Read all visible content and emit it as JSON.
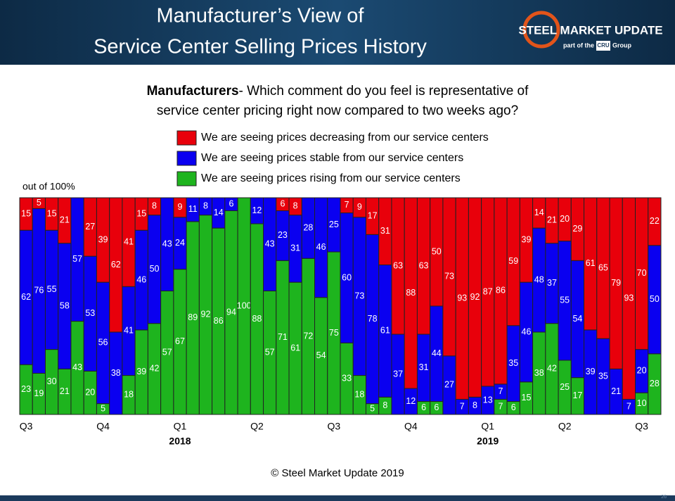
{
  "header": {
    "title": [
      "Manufacturer’s View of",
      "Service Center Selling Prices History"
    ],
    "logo": "STEEL MARKET UPDATE",
    "logo_tagline": [
      "part of the",
      "CRU",
      "Group"
    ]
  },
  "chart_data": {
    "type": "bar",
    "stacked": true,
    "subtitle_bold": "Manufacturers",
    "subtitle": [
      "- Which comment do you feel is representative of",
      "service center pricing right now compared to two weeks ago?"
    ],
    "ylabel": "out of 100%",
    "ylim": [
      0,
      100
    ],
    "categories": [
      "Q3",
      null,
      null,
      null,
      null,
      null,
      "Q4",
      null,
      null,
      null,
      null,
      null,
      "Q1",
      null,
      null,
      null,
      null,
      null,
      "Q2",
      null,
      null,
      null,
      null,
      null,
      "Q3",
      null,
      null,
      null,
      null,
      null,
      "Q4",
      null,
      null,
      null,
      null,
      null,
      "Q1",
      null,
      null,
      null,
      null,
      null,
      "Q2",
      null,
      null,
      null,
      null,
      null,
      "Q3",
      null
    ],
    "x_groups": [
      "2018",
      "2019"
    ],
    "series": [
      {
        "name": "We are seeing prices decreasing from our service centers",
        "color": "#e8000b",
        "values": [
          15,
          5,
          15,
          21,
          0,
          27,
          39,
          62,
          41,
          15,
          8,
          0,
          9,
          0,
          0,
          0,
          0,
          0,
          0,
          0,
          6,
          8,
          0,
          0,
          0,
          7,
          9,
          17,
          31,
          63,
          88,
          63,
          50,
          73,
          93,
          92,
          87,
          86,
          59,
          39,
          14,
          21,
          20,
          29,
          61,
          65,
          79,
          93,
          70,
          22
        ]
      },
      {
        "name": "We are seeing prices stable from our service centers",
        "color": "#0a00f0",
        "values": [
          62,
          76,
          55,
          58,
          57,
          53,
          56,
          38,
          41,
          46,
          50,
          43,
          24,
          11,
          8,
          14,
          6,
          0,
          12,
          43,
          23,
          31,
          28,
          46,
          25,
          60,
          73,
          78,
          61,
          37,
          12,
          31,
          44,
          27,
          7,
          8,
          13,
          7,
          35,
          46,
          48,
          37,
          55,
          54,
          39,
          35,
          21,
          7,
          20,
          50
        ]
      },
      {
        "name": "We are seeing prices rising from our service centers",
        "color": "#1eb41e",
        "values": [
          23,
          19,
          30,
          21,
          43,
          20,
          5,
          0,
          18,
          39,
          42,
          57,
          67,
          89,
          92,
          86,
          94,
          100,
          88,
          57,
          71,
          61,
          72,
          54,
          75,
          33,
          18,
          5,
          8,
          0,
          0,
          6,
          6,
          0,
          0,
          0,
          0,
          7,
          6,
          15,
          38,
          42,
          25,
          17,
          0,
          0,
          0,
          0,
          10,
          28
        ]
      }
    ]
  },
  "footer": "© Steel Market Update 2019",
  "page_number": "26"
}
